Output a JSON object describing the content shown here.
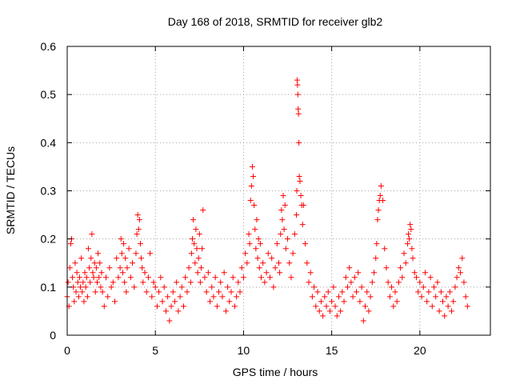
{
  "chart_data": {
    "type": "scatter",
    "title": "Day 168 of 2018, SRMTID for receiver glb2",
    "xlabel": "GPS time / hours",
    "ylabel": "SRMTID / TECUs",
    "xlim": [
      0,
      24
    ],
    "ylim": [
      0,
      0.6
    ],
    "xticks": [
      0,
      5,
      10,
      15,
      20
    ],
    "xtick_labels": [
      "0",
      "5",
      "10",
      "15",
      "20"
    ],
    "yticks": [
      0,
      0.1,
      0.2,
      0.3,
      0.4,
      0.5,
      0.6
    ],
    "ytick_labels": [
      "0",
      "0.1",
      "0.2",
      "0.3",
      "0.4",
      "0.5",
      "0.6"
    ],
    "grid": true,
    "marker": "+",
    "color": "#ff0000",
    "series": [
      {
        "name": "glb2",
        "x": [
          0.0,
          0.05,
          0.1,
          0.15,
          0.2,
          0.25,
          0.3,
          0.35,
          0.4,
          0.45,
          0.5,
          0.55,
          0.6,
          0.65,
          0.7,
          0.75,
          0.8,
          0.85,
          0.9,
          0.95,
          1.0,
          1.05,
          1.1,
          1.15,
          1.2,
          1.25,
          1.3,
          1.35,
          1.4,
          1.45,
          1.5,
          1.55,
          1.6,
          1.65,
          1.7,
          1.75,
          1.8,
          1.85,
          1.9,
          1.95,
          2.0,
          2.1,
          2.2,
          2.3,
          2.4,
          2.5,
          2.6,
          2.7,
          2.8,
          2.9,
          3.0,
          3.05,
          3.1,
          3.15,
          3.2,
          3.25,
          3.3,
          3.35,
          3.4,
          3.5,
          3.6,
          3.7,
          3.8,
          3.9,
          3.95,
          4.0,
          4.05,
          4.1,
          4.15,
          4.2,
          4.25,
          4.3,
          4.4,
          4.5,
          4.6,
          4.7,
          4.8,
          4.9,
          5.0,
          5.1,
          5.2,
          5.3,
          5.4,
          5.5,
          5.6,
          5.7,
          5.8,
          5.9,
          6.0,
          6.1,
          6.2,
          6.3,
          6.4,
          6.5,
          6.6,
          6.7,
          6.8,
          6.9,
          7.0,
          7.05,
          7.1,
          7.15,
          7.2,
          7.25,
          7.3,
          7.35,
          7.4,
          7.45,
          7.5,
          7.55,
          7.6,
          7.65,
          7.7,
          7.8,
          7.9,
          8.0,
          8.1,
          8.2,
          8.3,
          8.4,
          8.5,
          8.6,
          8.7,
          8.8,
          8.9,
          9.0,
          9.1,
          9.2,
          9.3,
          9.4,
          9.5,
          9.6,
          9.7,
          9.8,
          9.9,
          10.0,
          10.1,
          10.2,
          10.3,
          10.35,
          10.4,
          10.45,
          10.5,
          10.55,
          10.6,
          10.65,
          10.7,
          10.75,
          10.8,
          10.85,
          10.9,
          10.95,
          11.0,
          11.1,
          11.2,
          11.3,
          11.4,
          11.5,
          11.6,
          11.7,
          11.8,
          11.9,
          12.0,
          12.05,
          12.1,
          12.15,
          12.2,
          12.25,
          12.3,
          12.35,
          12.4,
          12.5,
          12.6,
          12.7,
          12.8,
          12.9,
          13.0,
          13.02,
          13.04,
          13.06,
          13.08,
          13.1,
          13.12,
          13.14,
          13.16,
          13.2,
          13.25,
          13.3,
          13.35,
          13.4,
          13.5,
          13.6,
          13.7,
          13.8,
          13.9,
          14.0,
          14.1,
          14.2,
          14.3,
          14.4,
          14.5,
          14.6,
          14.7,
          14.8,
          14.9,
          15.0,
          15.1,
          15.2,
          15.3,
          15.4,
          15.5,
          15.6,
          15.7,
          15.8,
          15.9,
          16.0,
          16.1,
          16.2,
          16.3,
          16.4,
          16.5,
          16.6,
          16.7,
          16.8,
          16.9,
          17.0,
          17.1,
          17.2,
          17.3,
          17.4,
          17.5,
          17.55,
          17.6,
          17.65,
          17.7,
          17.75,
          17.8,
          17.9,
          18.0,
          18.1,
          18.2,
          18.3,
          18.4,
          18.5,
          18.6,
          18.7,
          18.8,
          18.9,
          19.0,
          19.1,
          19.2,
          19.3,
          19.35,
          19.4,
          19.45,
          19.5,
          19.55,
          19.6,
          19.7,
          19.8,
          19.9,
          20.0,
          20.1,
          20.2,
          20.3,
          20.4,
          20.5,
          20.6,
          20.7,
          20.8,
          20.9,
          21.0,
          21.1,
          21.2,
          21.3,
          21.4,
          21.5,
          21.6,
          21.7,
          21.8,
          21.9,
          22.0,
          22.1,
          22.2,
          22.3,
          22.4,
          22.5,
          22.6,
          22.7
        ],
        "y": [
          0.08,
          0.11,
          0.06,
          0.14,
          0.19,
          0.2,
          0.12,
          0.1,
          0.07,
          0.15,
          0.09,
          0.13,
          0.11,
          0.08,
          0.12,
          0.1,
          0.16,
          0.09,
          0.11,
          0.07,
          0.13,
          0.1,
          0.12,
          0.08,
          0.18,
          0.14,
          0.11,
          0.16,
          0.21,
          0.13,
          0.12,
          0.15,
          0.09,
          0.14,
          0.11,
          0.17,
          0.12,
          0.15,
          0.1,
          0.13,
          0.09,
          0.06,
          0.12,
          0.08,
          0.14,
          0.1,
          0.11,
          0.07,
          0.16,
          0.12,
          0.14,
          0.2,
          0.17,
          0.13,
          0.19,
          0.11,
          0.16,
          0.09,
          0.14,
          0.18,
          0.12,
          0.15,
          0.1,
          0.17,
          0.21,
          0.25,
          0.22,
          0.24,
          0.19,
          0.16,
          0.14,
          0.11,
          0.13,
          0.09,
          0.12,
          0.17,
          0.08,
          0.11,
          0.1,
          0.06,
          0.09,
          0.12,
          0.07,
          0.1,
          0.05,
          0.08,
          0.03,
          0.06,
          0.09,
          0.07,
          0.11,
          0.05,
          0.08,
          0.1,
          0.06,
          0.12,
          0.09,
          0.14,
          0.11,
          0.17,
          0.2,
          0.24,
          0.19,
          0.15,
          0.22,
          0.18,
          0.13,
          0.16,
          0.21,
          0.11,
          0.14,
          0.18,
          0.26,
          0.12,
          0.09,
          0.13,
          0.07,
          0.1,
          0.08,
          0.12,
          0.06,
          0.09,
          0.11,
          0.08,
          0.13,
          0.05,
          0.1,
          0.07,
          0.09,
          0.12,
          0.06,
          0.08,
          0.11,
          0.09,
          0.14,
          0.12,
          0.17,
          0.15,
          0.21,
          0.19,
          0.28,
          0.31,
          0.35,
          0.33,
          0.27,
          0.22,
          0.18,
          0.24,
          0.16,
          0.2,
          0.14,
          0.19,
          0.12,
          0.15,
          0.11,
          0.13,
          0.17,
          0.12,
          0.16,
          0.1,
          0.14,
          0.19,
          0.15,
          0.13,
          0.21,
          0.26,
          0.24,
          0.29,
          0.22,
          0.27,
          0.18,
          0.2,
          0.15,
          0.12,
          0.17,
          0.21,
          0.25,
          0.3,
          0.53,
          0.52,
          0.5,
          0.47,
          0.46,
          0.4,
          0.33,
          0.32,
          0.29,
          0.27,
          0.23,
          0.27,
          0.19,
          0.15,
          0.11,
          0.13,
          0.08,
          0.1,
          0.06,
          0.09,
          0.05,
          0.07,
          0.04,
          0.08,
          0.06,
          0.09,
          0.05,
          0.07,
          0.1,
          0.06,
          0.04,
          0.08,
          0.05,
          0.09,
          0.07,
          0.12,
          0.1,
          0.14,
          0.11,
          0.08,
          0.12,
          0.09,
          0.13,
          0.07,
          0.1,
          0.03,
          0.06,
          0.09,
          0.05,
          0.08,
          0.11,
          0.13,
          0.16,
          0.19,
          0.24,
          0.26,
          0.28,
          0.29,
          0.31,
          0.28,
          0.18,
          0.14,
          0.11,
          0.08,
          0.1,
          0.06,
          0.09,
          0.07,
          0.11,
          0.14,
          0.12,
          0.17,
          0.15,
          0.19,
          0.21,
          0.2,
          0.23,
          0.22,
          0.18,
          0.16,
          0.13,
          0.12,
          0.09,
          0.11,
          0.08,
          0.1,
          0.13,
          0.07,
          0.09,
          0.12,
          0.06,
          0.1,
          0.08,
          0.11,
          0.05,
          0.09,
          0.07,
          0.04,
          0.08,
          0.06,
          0.09,
          0.05,
          0.07,
          0.1,
          0.12,
          0.14,
          0.13,
          0.16,
          0.11,
          0.08,
          0.06
        ]
      }
    ]
  }
}
